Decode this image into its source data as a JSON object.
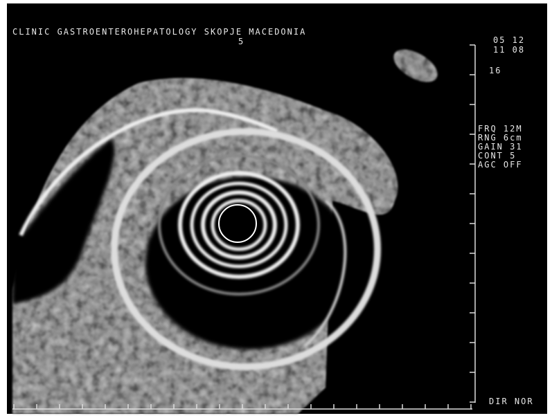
{
  "header": {
    "title": "CLINIC GASTROENTEROHEPATOLOGY SKOPJE MACEDONIA",
    "subtitle": "5"
  },
  "info": {
    "date": "05 12",
    "time": "11 08",
    "depth": "16"
  },
  "settings": [
    "FRQ 12M",
    "RNG 6cm",
    "GAIN 31",
    "CONT 5",
    "AGC OFF"
  ],
  "footer": "DIR NOR"
}
